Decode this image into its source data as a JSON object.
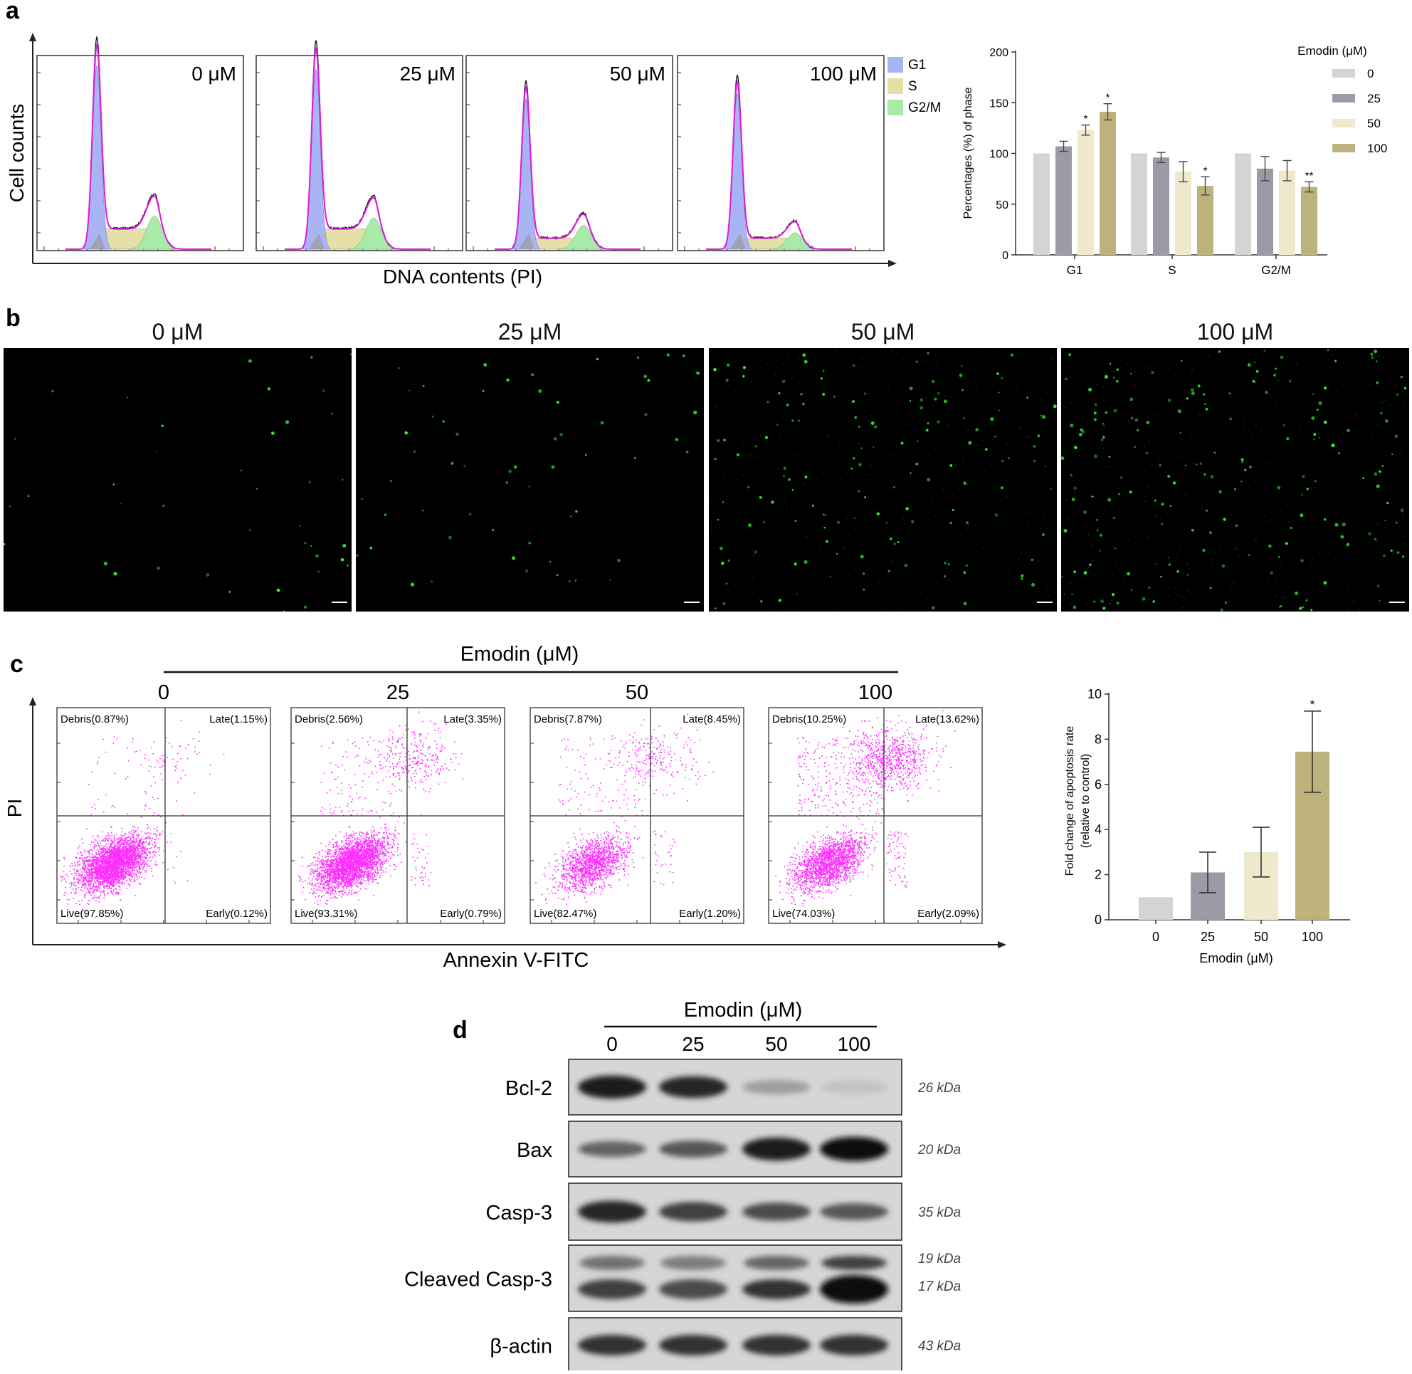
{
  "panel_labels": {
    "a": "a",
    "b": "b",
    "c": "c",
    "d": "d"
  },
  "colors": {
    "G1": "#a9b4f2",
    "S": "#e5e0a8",
    "G2M": "#a8eba8",
    "bar0": "#d4d4d4",
    "bar25": "#9b9aa5",
    "bar50": "#eee8cd",
    "bar100": "#bdb17c",
    "scatter": "#ff2cff",
    "green_cells": "#3cff3c"
  },
  "panel_a": {
    "histograms": {
      "y_axis_label": "Cell counts",
      "x_axis_label": "DNA contents (PI)",
      "panels": [
        "0 μM",
        "25 μM",
        "50 μM",
        "100 μM"
      ],
      "legend": [
        "G1",
        "S",
        "G2/M"
      ]
    }
  },
  "panel_b": {
    "titles": [
      "0 μM",
      "25 μM",
      "50 μM",
      "100 μM"
    ],
    "green_dot_density": [
      40,
      60,
      150,
      200
    ]
  },
  "panel_c": {
    "header": "Emodin (μM)",
    "y_axis_label": "PI",
    "x_axis_label": "Annexin V-FITC",
    "plots": [
      {
        "dose": "0",
        "debris": "Debris(0.87%)",
        "late": "Late(1.15%)",
        "live": "Live(97.85%)",
        "early": "Early(0.12%)"
      },
      {
        "dose": "25",
        "debris": "Debris(2.56%)",
        "late": "Late(3.35%)",
        "live": "Live(93.31%)",
        "early": "Early(0.79%)"
      },
      {
        "dose": "50",
        "debris": "Debris(7.87%)",
        "late": "Late(8.45%)",
        "live": "Live(82.47%)",
        "early": "Early(1.20%)"
      },
      {
        "dose": "100",
        "debris": "Debris(10.25%)",
        "late": "Late(13.62%)",
        "live": "Live(74.03%)",
        "early": "Early(2.09%)"
      }
    ]
  },
  "panel_d": {
    "header": "Emodin (μM)",
    "lanes": [
      "0",
      "25",
      "50",
      "100"
    ],
    "bands": [
      {
        "label": "Bcl-2",
        "kda": [
          "26 kDa"
        ],
        "intensity": [
          0.95,
          0.9,
          0.4,
          0.25
        ]
      },
      {
        "label": "Bax",
        "kda": [
          "20 kDa"
        ],
        "intensity": [
          0.65,
          0.7,
          0.95,
          1.0
        ]
      },
      {
        "label": "Casp-3",
        "kda": [
          "35 kDa"
        ],
        "intensity": [
          0.9,
          0.8,
          0.75,
          0.7
        ]
      },
      {
        "label": "Cleaved Casp-3",
        "kda": [
          "19 kDa",
          "17 kDa"
        ],
        "intensity": [
          0.8,
          0.75,
          0.85,
          1.0
        ]
      },
      {
        "label": "β-actin",
        "kda": [
          "43 kDa"
        ],
        "intensity": [
          0.85,
          0.85,
          0.85,
          0.85
        ]
      }
    ]
  },
  "chart_data": [
    {
      "type": "bar",
      "ylabel": "Percentages (%) of phase",
      "xlabel": "",
      "categories": [
        "G1",
        "S",
        "G2/M"
      ],
      "ylim": [
        0,
        200
      ],
      "yticks": [
        0,
        50,
        100,
        150,
        200
      ],
      "legend_title": "Emodin (μM)",
      "legend_position": "right",
      "series": [
        {
          "name": "0",
          "values": [
            100,
            100,
            100
          ],
          "errors": [
            0,
            0,
            0
          ],
          "sig": [
            "",
            "",
            ""
          ]
        },
        {
          "name": "25",
          "values": [
            107,
            96,
            85
          ],
          "errors": [
            5,
            5,
            12
          ],
          "sig": [
            "",
            "",
            ""
          ]
        },
        {
          "name": "50",
          "values": [
            123,
            82,
            83
          ],
          "errors": [
            5,
            10,
            10
          ],
          "sig": [
            "*",
            "",
            ""
          ]
        },
        {
          "name": "100",
          "values": [
            141,
            68,
            67
          ],
          "errors": [
            8,
            9,
            5
          ],
          "sig": [
            "*",
            "*",
            "**"
          ]
        }
      ]
    },
    {
      "type": "bar",
      "ylabel": "Fold change of apoptosis rate (relative to control)",
      "xlabel": "Emodin (μM)",
      "categories": [
        "0",
        "25",
        "50",
        "100"
      ],
      "values": [
        1.0,
        2.1,
        3.0,
        7.45
      ],
      "errors": [
        0,
        0.9,
        1.1,
        1.8
      ],
      "sig": [
        "",
        "",
        "",
        "*"
      ],
      "ylim": [
        0,
        10
      ],
      "yticks": [
        0,
        2,
        4,
        6,
        8,
        10
      ]
    }
  ]
}
